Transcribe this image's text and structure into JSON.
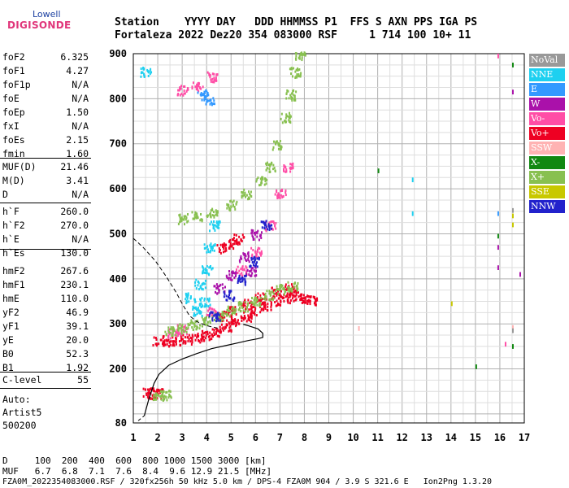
{
  "logo": {
    "top": "Lowell",
    "main": "DIGISONDE"
  },
  "header": {
    "row1": "Station    YYYY DAY   DDD HHMMSS P1  FFS S AXN PPS IGA PS",
    "row2": "Fortaleza 2022 Dez20 354 083000 RSF     1 714 100 10+ 11"
  },
  "params": {
    "g1": [
      {
        "label": "foF2",
        "value": "6.325"
      },
      {
        "label": "foF1",
        "value": "4.27"
      },
      {
        "label": "foF1p",
        "value": "N/A"
      },
      {
        "label": "foE",
        "value": "N/A"
      },
      {
        "label": "foEp",
        "value": "1.50"
      },
      {
        "label": "fxI",
        "value": "N/A"
      },
      {
        "label": "foEs",
        "value": "2.15"
      },
      {
        "label": "fmin",
        "value": "1.60"
      }
    ],
    "g2": [
      {
        "label": "MUF(D)",
        "value": "21.46"
      },
      {
        "label": "M(D)",
        "value": "3.41"
      },
      {
        "label": "D",
        "value": "N/A"
      }
    ],
    "g3": [
      {
        "label": "h`F",
        "value": "260.0"
      },
      {
        "label": "h`F2",
        "value": "270.0"
      },
      {
        "label": "h`E",
        "value": "N/A"
      },
      {
        "label": "h`Es",
        "value": "130.0"
      }
    ],
    "g4": [
      {
        "label": "hmF2",
        "value": "267.6"
      },
      {
        "label": "hmF1",
        "value": "230.1"
      },
      {
        "label": "hmE",
        "value": "110.0"
      },
      {
        "label": "yF2",
        "value": "46.9"
      },
      {
        "label": "yF1",
        "value": "39.1"
      },
      {
        "label": "yE",
        "value": "20.0"
      },
      {
        "label": "B0",
        "value": "52.3"
      },
      {
        "label": "B1",
        "value": "1.92"
      }
    ],
    "g5": [
      {
        "label": "C-level",
        "value": "55"
      }
    ],
    "auto": [
      "Auto:",
      "Artist5",
      "500200"
    ]
  },
  "legend": [
    {
      "label": "NoVal",
      "color": "#999999"
    },
    {
      "label": "NNE",
      "color": "#1ed0f0"
    },
    {
      "label": "E",
      "color": "#3399ff"
    },
    {
      "label": "W",
      "color": "#aa11aa"
    },
    {
      "label": "Vo-",
      "color": "#ff4da6"
    },
    {
      "label": "Vo+",
      "color": "#ee0022"
    },
    {
      "label": "SSW",
      "color": "#ffb3b3"
    },
    {
      "label": "X-",
      "color": "#118811"
    },
    {
      "label": "X+",
      "color": "#88c050"
    },
    {
      "label": "SSE",
      "color": "#c8c800"
    },
    {
      "label": "NNW",
      "color": "#2222cc"
    }
  ],
  "footer": {
    "line1": "D     100  200  400  600  800 1000 1500 3000 [km]",
    "line2": "MUF   6.7  6.8  7.1  7.6  8.4  9.6 12.9 21.5 [MHz]",
    "line3": "FZA0M_2022354083000.RSF / 320fx256h 50 kHz 5.0 km / DPS-4 FZA0M 904 / 3.9 S 321.6 E   Ion2Png 1.3.20"
  },
  "chart_data": {
    "type": "scatter",
    "xlabel": "",
    "ylabel": "",
    "xlim": [
      1,
      17
    ],
    "ylim": [
      80,
      900
    ],
    "x_ticks": [
      1,
      2,
      3,
      4,
      5,
      6,
      7,
      8,
      9,
      10,
      11,
      12,
      13,
      14,
      15,
      16,
      17
    ],
    "y_ticks": [
      80,
      200,
      300,
      400,
      500,
      600,
      700,
      800,
      900
    ],
    "grid": true,
    "legend_position": "right",
    "profile_line": [
      [
        1.45,
        96
      ],
      [
        1.62,
        130
      ],
      [
        1.85,
        168
      ],
      [
        2.05,
        188
      ],
      [
        2.45,
        208
      ],
      [
        3.0,
        222
      ],
      [
        3.6,
        234
      ],
      [
        4.2,
        245
      ],
      [
        4.8,
        252
      ],
      [
        5.3,
        258
      ],
      [
        5.7,
        263
      ],
      [
        6.1,
        267
      ],
      [
        6.3,
        270
      ],
      [
        6.3,
        279
      ],
      [
        6.1,
        289
      ],
      [
        5.7,
        296
      ],
      [
        5.5,
        299
      ]
    ],
    "profile_tail": [
      [
        1.2,
        85
      ],
      [
        1.45,
        96
      ]
    ],
    "dashed_line": [
      [
        1.0,
        490
      ],
      [
        1.4,
        470
      ],
      [
        1.9,
        440
      ],
      [
        2.35,
        405
      ],
      [
        2.75,
        370
      ],
      [
        3.05,
        340
      ],
      [
        3.3,
        318
      ],
      [
        3.6,
        305
      ],
      [
        4.0,
        296
      ],
      [
        4.5,
        290
      ]
    ],
    "traces": [
      {
        "name": "Vo+",
        "color": "#ee0022",
        "points": [
          [
            2.0,
            265
          ],
          [
            2.4,
            262
          ],
          [
            2.8,
            265
          ],
          [
            3.2,
            268
          ],
          [
            3.6,
            272
          ],
          [
            4.0,
            276
          ],
          [
            4.4,
            285
          ],
          [
            4.8,
            296
          ],
          [
            5.2,
            308
          ],
          [
            5.6,
            318
          ],
          [
            6.0,
            330
          ],
          [
            6.4,
            340
          ],
          [
            6.8,
            350
          ],
          [
            7.2,
            358
          ],
          [
            7.6,
            364
          ],
          [
            8.0,
            360
          ],
          [
            8.3,
            355
          ],
          [
            5.0,
            330
          ],
          [
            5.6,
            345
          ],
          [
            6.2,
            360
          ],
          [
            6.8,
            372
          ],
          [
            7.4,
            380
          ],
          [
            4.6,
            320
          ],
          [
            1.6,
            148
          ],
          [
            1.8,
            146
          ],
          [
            2.0,
            147
          ],
          [
            4.6,
            470
          ],
          [
            5.0,
            480
          ],
          [
            5.3,
            490
          ]
        ]
      },
      {
        "name": "Vo-",
        "color": "#ff4da6",
        "points": [
          [
            2.6,
            280
          ],
          [
            3.0,
            290
          ],
          [
            4.2,
            330
          ],
          [
            5.4,
            420
          ],
          [
            6.0,
            460
          ],
          [
            6.6,
            520
          ],
          [
            7.0,
            590
          ],
          [
            7.3,
            650
          ],
          [
            3.0,
            820
          ],
          [
            3.6,
            830
          ],
          [
            4.2,
            850
          ],
          [
            15.9,
            895
          ],
          [
            16.2,
            255
          ]
        ]
      },
      {
        "name": "X+",
        "color": "#88c050",
        "points": [
          [
            2.5,
            284
          ],
          [
            3.0,
            292
          ],
          [
            3.5,
            300
          ],
          [
            4.0,
            308
          ],
          [
            4.5,
            318
          ],
          [
            5.0,
            330
          ],
          [
            5.5,
            340
          ],
          [
            6.0,
            352
          ],
          [
            6.5,
            366
          ],
          [
            7.0,
            378
          ],
          [
            7.5,
            385
          ],
          [
            2.0,
            143
          ],
          [
            2.3,
            144
          ],
          [
            3.0,
            535
          ],
          [
            3.6,
            540
          ],
          [
            4.2,
            548
          ],
          [
            5.0,
            565
          ],
          [
            5.6,
            590
          ],
          [
            6.2,
            620
          ],
          [
            6.6,
            650
          ],
          [
            6.9,
            700
          ],
          [
            7.2,
            760
          ],
          [
            7.4,
            810
          ],
          [
            7.6,
            860
          ],
          [
            7.8,
            895
          ]
        ]
      },
      {
        "name": "X-",
        "color": "#118811",
        "points": [
          [
            11.0,
            640
          ],
          [
            15.0,
            205
          ],
          [
            15.9,
            495
          ],
          [
            16.5,
            875
          ],
          [
            16.5,
            250
          ]
        ]
      },
      {
        "name": "NNE",
        "color": "#1ed0f0",
        "points": [
          [
            1.5,
            862
          ],
          [
            3.3,
            360
          ],
          [
            3.7,
            390
          ],
          [
            4.0,
            420
          ],
          [
            4.1,
            470
          ],
          [
            4.3,
            520
          ],
          [
            3.6,
            330
          ],
          [
            3.9,
            350
          ],
          [
            12.4,
            545
          ],
          [
            12.4,
            620
          ]
        ]
      },
      {
        "name": "W",
        "color": "#aa11aa",
        "points": [
          [
            4.5,
            380
          ],
          [
            5.0,
            410
          ],
          [
            5.5,
            450
          ],
          [
            6.0,
            500
          ],
          [
            5.8,
            420
          ],
          [
            15.9,
            470
          ],
          [
            15.9,
            425
          ],
          [
            16.5,
            815
          ],
          [
            16.8,
            410
          ]
        ]
      },
      {
        "name": "NNW",
        "color": "#2222cc",
        "points": [
          [
            4.9,
            365
          ],
          [
            5.4,
            400
          ],
          [
            5.9,
            440
          ],
          [
            4.3,
            320
          ],
          [
            6.4,
            520
          ]
        ]
      },
      {
        "name": "E",
        "color": "#3399ff",
        "points": [
          [
            3.8,
            810
          ],
          [
            4.1,
            800
          ],
          [
            15.9,
            545
          ]
        ]
      },
      {
        "name": "SSE",
        "color": "#c8c800",
        "points": [
          [
            14.0,
            345
          ],
          [
            16.5,
            520
          ],
          [
            16.5,
            540
          ]
        ]
      },
      {
        "name": "SSW",
        "color": "#ffb3b3",
        "points": [
          [
            10.2,
            290
          ],
          [
            16.5,
            292
          ]
        ]
      },
      {
        "name": "NoVal",
        "color": "#999999",
        "points": [
          [
            16.5,
            285
          ],
          [
            16.5,
            552
          ]
        ]
      }
    ]
  }
}
